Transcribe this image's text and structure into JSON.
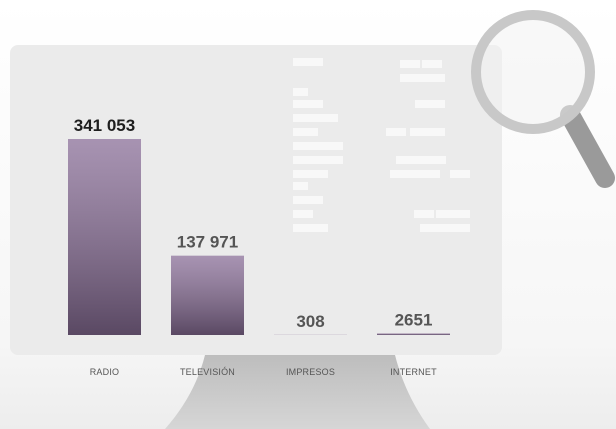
{
  "chart_data": {
    "type": "bar",
    "categories": [
      "RADIO",
      "TELEVISIÓN",
      "IMPRESOS",
      "INTERNET"
    ],
    "values": [
      341053,
      137971,
      308,
      2651
    ],
    "value_labels": [
      "341 053",
      "137 971",
      "308",
      "2651"
    ],
    "color": "#8a6f98"
  }
}
